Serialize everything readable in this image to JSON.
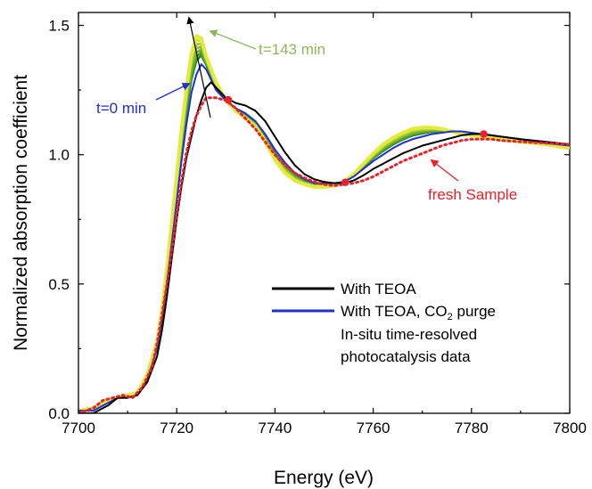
{
  "chart_data": {
    "type": "line",
    "xlabel": "Energy (eV)",
    "ylabel": "Normalized absorption coefficient",
    "xlim": [
      7700,
      7800
    ],
    "ylim": [
      0.0,
      1.55
    ],
    "x_ticks": [
      "7700",
      "7720",
      "7740",
      "7760",
      "7780",
      "7800"
    ],
    "y_ticks": [
      "0.0",
      "0.5",
      "1.0",
      "1.5"
    ],
    "x_tick_values": [
      7700,
      7720,
      7740,
      7760,
      7780,
      7800
    ],
    "y_tick_values": [
      0.0,
      0.5,
      1.0,
      1.5
    ],
    "colors": {
      "teoa": "#000000",
      "co2": "#1f2fd6",
      "insitu_dark": "#2e8b2e",
      "insitu_light": "#e2ea3a",
      "insitu_mid": "#8cc63f",
      "fresh": "#e8212b",
      "t0_label": "#1f2fd6",
      "t143_label": "#8db85a",
      "fresh_label": "#e8212b"
    },
    "series": [
      {
        "name": "With TEOA",
        "color": "#000000",
        "x": [
          7700,
          7703,
          7706,
          7708,
          7710,
          7712,
          7714,
          7716,
          7717,
          7718,
          7719,
          7720,
          7721,
          7722,
          7723,
          7724,
          7725,
          7726,
          7727,
          7728,
          7730,
          7732,
          7734,
          7736,
          7738,
          7740,
          7742,
          7744,
          7746,
          7748,
          7750,
          7752,
          7754,
          7756,
          7758,
          7760,
          7762,
          7764,
          7766,
          7768,
          7770,
          7772,
          7774,
          7776,
          7778,
          7780,
          7782,
          7784,
          7786,
          7790,
          7795,
          7800
        ],
        "y": [
          0.0,
          0.0,
          0.03,
          0.06,
          0.06,
          0.07,
          0.12,
          0.22,
          0.32,
          0.45,
          0.6,
          0.75,
          0.88,
          0.99,
          1.07,
          1.15,
          1.21,
          1.26,
          1.28,
          1.26,
          1.22,
          1.2,
          1.19,
          1.17,
          1.13,
          1.07,
          1.01,
          0.96,
          0.925,
          0.905,
          0.895,
          0.89,
          0.89,
          0.9,
          0.92,
          0.945,
          0.965,
          0.985,
          1.005,
          1.02,
          1.035,
          1.045,
          1.055,
          1.065,
          1.075,
          1.08,
          1.08,
          1.075,
          1.07,
          1.06,
          1.05,
          1.04
        ]
      },
      {
        "name": "With TEOA, CO2 purge",
        "color": "#1f2fd6",
        "x": [
          7700,
          7703,
          7706,
          7708,
          7710,
          7712,
          7714,
          7716,
          7717,
          7718,
          7719,
          7720,
          7721,
          7722,
          7723,
          7724,
          7725,
          7726,
          7728,
          7730,
          7732,
          7734,
          7736,
          7738,
          7740,
          7742,
          7744,
          7746,
          7748,
          7750,
          7752,
          7754,
          7756,
          7758,
          7760,
          7762,
          7764,
          7766,
          7768,
          7770,
          7772,
          7774,
          7776,
          7778,
          7780,
          7782,
          7784,
          7786,
          7790,
          7795,
          7800
        ],
        "y": [
          0.01,
          0.01,
          0.04,
          0.06,
          0.06,
          0.07,
          0.13,
          0.25,
          0.36,
          0.5,
          0.66,
          0.82,
          0.98,
          1.12,
          1.24,
          1.31,
          1.35,
          1.33,
          1.25,
          1.21,
          1.18,
          1.16,
          1.13,
          1.08,
          1.02,
          0.97,
          0.93,
          0.905,
          0.89,
          0.89,
          0.89,
          0.895,
          0.915,
          0.945,
          0.975,
          1.0,
          1.025,
          1.045,
          1.06,
          1.07,
          1.08,
          1.085,
          1.09,
          1.09,
          1.085,
          1.08,
          1.075,
          1.07,
          1.06,
          1.045,
          1.035
        ]
      },
      {
        "name": "In-situ time-resolved photocatalysis data",
        "color": "#2e8b2e",
        "x": [
          7700,
          7703,
          7706,
          7708,
          7710,
          7712,
          7714,
          7716,
          7717,
          7718,
          7719,
          7720,
          7721,
          7722,
          7723,
          7724,
          7725,
          7726,
          7728,
          7730,
          7732,
          7734,
          7736,
          7738,
          7740,
          7742,
          7744,
          7746,
          7748,
          7750,
          7752,
          7754,
          7756,
          7758,
          7760,
          7762,
          7764,
          7766,
          7768,
          7770,
          7772,
          7774,
          7776,
          7778,
          7780,
          7782,
          7784,
          7786,
          7790,
          7795,
          7800
        ],
        "y": [
          0.01,
          0.02,
          0.05,
          0.06,
          0.07,
          0.08,
          0.15,
          0.28,
          0.4,
          0.56,
          0.74,
          0.92,
          1.1,
          1.26,
          1.39,
          1.46,
          1.45,
          1.38,
          1.28,
          1.21,
          1.17,
          1.14,
          1.11,
          1.05,
          0.98,
          0.93,
          0.9,
          0.885,
          0.875,
          0.875,
          0.88,
          0.895,
          0.925,
          0.965,
          1.005,
          1.04,
          1.065,
          1.085,
          1.1,
          1.105,
          1.105,
          1.1,
          1.09,
          1.08,
          1.075,
          1.07,
          1.065,
          1.06,
          1.05,
          1.04,
          1.025
        ]
      },
      {
        "name": "fresh Sample",
        "color": "#e8212b",
        "style": "dotted",
        "x": [
          7700,
          7703,
          7705,
          7707,
          7709,
          7711,
          7713,
          7715,
          7716,
          7717,
          7718,
          7719,
          7720,
          7721,
          7722,
          7723,
          7724,
          7725,
          7726,
          7728,
          7730,
          7732,
          7734,
          7736,
          7738,
          7740,
          7742,
          7744,
          7746,
          7748,
          7750,
          7752,
          7754,
          7756,
          7758,
          7760,
          7762,
          7764,
          7766,
          7768,
          7770,
          7772,
          7774,
          7776,
          7778,
          7780,
          7782,
          7784,
          7786,
          7790,
          7795,
          7800
        ],
        "y": [
          0.0,
          0.02,
          0.05,
          0.06,
          0.07,
          0.06,
          0.1,
          0.18,
          0.27,
          0.38,
          0.5,
          0.63,
          0.77,
          0.9,
          1.01,
          1.09,
          1.15,
          1.19,
          1.22,
          1.22,
          1.21,
          1.18,
          1.14,
          1.1,
          1.05,
          1.0,
          0.96,
          0.93,
          0.91,
          0.895,
          0.885,
          0.88,
          0.885,
          0.89,
          0.9,
          0.915,
          0.935,
          0.955,
          0.975,
          0.99,
          1.005,
          1.02,
          1.035,
          1.045,
          1.055,
          1.06,
          1.06,
          1.06,
          1.055,
          1.05,
          1.045,
          1.04
        ]
      }
    ],
    "isosbestic_points": {
      "x": [
        7730.5,
        7754.3,
        7782.5
      ],
      "y": [
        1.212,
        0.893,
        1.08
      ]
    },
    "legend": {
      "entries": [
        {
          "label": "With TEOA",
          "color": "#000000"
        },
        {
          "label_main": "With TEOA, CO",
          "label_sub": "2",
          "label_tail": " purge",
          "color": "#1f2fd6"
        },
        {
          "label_line1": "In-situ time-resolved",
          "label_line2": "photocatalysis data",
          "gradient": [
            "#2e8b2e",
            "#e2ea3a"
          ]
        }
      ],
      "placement": "bottom-right"
    },
    "annotations": {
      "t0": "t=0 min",
      "t143": "t=143 min",
      "fresh": "fresh Sample"
    },
    "grid": false
  }
}
